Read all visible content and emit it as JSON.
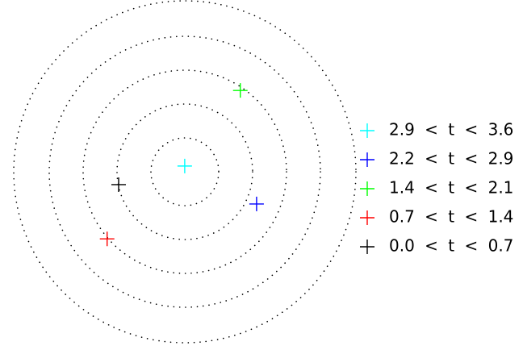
{
  "chart_data": {
    "type": "scatter",
    "xlim": [
      -5.45,
      9.98
    ],
    "ylim": [
      -5.26,
      5.07
    ],
    "legend": "right",
    "series": [
      {
        "name": "2.9 < t < 3.6",
        "color": "#00ffff",
        "x": [
          0.0
        ],
        "values": [
          0.17
        ]
      },
      {
        "name": "2.2 < t < 2.9",
        "color": "#0000ff",
        "x": [
          2.12
        ],
        "values": [
          -0.95
        ]
      },
      {
        "name": "1.4 < t < 2.1",
        "color": "#00ff00",
        "x": [
          1.64
        ],
        "values": [
          2.4
        ]
      },
      {
        "name": "0.7 < t < 1.4",
        "color": "#ff0000",
        "x": [
          -2.29
        ],
        "values": [
          -1.98
        ]
      },
      {
        "name": "0.0 < t < 0.7",
        "color": "#000000",
        "x": [
          -1.95
        ],
        "values": [
          -0.38
        ]
      }
    ]
  }
}
